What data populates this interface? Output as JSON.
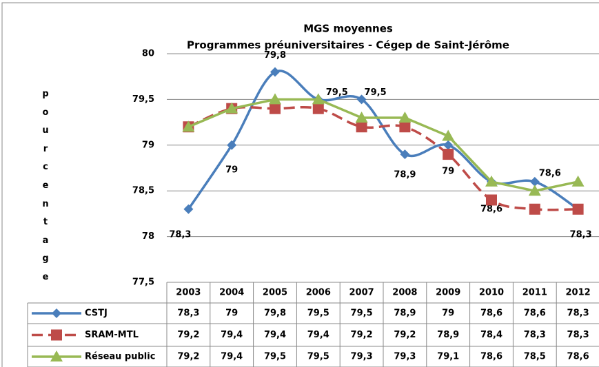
{
  "chart_data": {
    "type": "line",
    "title": "MGS moyennes",
    "subtitle": "Programmes préuniversitaires - Cégep de Saint-Jérôme",
    "y_label": "pourcentage",
    "categories": [
      "2003",
      "2004",
      "2005",
      "2006",
      "2007",
      "2008",
      "2009",
      "2010",
      "2011",
      "2012"
    ],
    "series": [
      {
        "name": "CSTJ",
        "color": "#4a7ebb",
        "marker": "diamond",
        "smooth": true,
        "dashed": false,
        "show_labels": true,
        "values": [
          78.3,
          79,
          79.8,
          79.5,
          79.5,
          78.9,
          79,
          78.6,
          78.6,
          78.3
        ],
        "value_labels": [
          "78,3",
          "79",
          "79,8",
          "79,5",
          "79,5",
          "78,9",
          "79",
          "78,6",
          "78,6",
          "78,3"
        ]
      },
      {
        "name": "SRAM-MTL",
        "color": "#be4b48",
        "marker": "square",
        "smooth": true,
        "dashed": true,
        "show_labels": false,
        "values": [
          79.2,
          79.4,
          79.4,
          79.4,
          79.2,
          79.2,
          78.9,
          78.4,
          78.3,
          78.3
        ],
        "value_labels": [
          "79,2",
          "79,4",
          "79,4",
          "79,4",
          "79,2",
          "79,2",
          "78,9",
          "78,4",
          "78,3",
          "78,3"
        ]
      },
      {
        "name": "Réseau public",
        "color": "#98b954",
        "marker": "triangle",
        "smooth": false,
        "dashed": false,
        "show_labels": false,
        "values": [
          79.2,
          79.4,
          79.5,
          79.5,
          79.3,
          79.3,
          79.1,
          78.6,
          78.5,
          78.6
        ],
        "value_labels": [
          "79,2",
          "79,4",
          "79,5",
          "79,5",
          "79,3",
          "79,3",
          "79,1",
          "78,6",
          "78,5",
          "78,6"
        ]
      }
    ],
    "ylim": [
      77.5,
      80
    ],
    "yticks": [
      {
        "value": 77.5,
        "label": "77,5"
      },
      78,
      {
        "value": 78.5,
        "label": "78,5"
      },
      79,
      {
        "value": 79.5,
        "label": "79,5"
      },
      80
    ],
    "grid": true,
    "data_table": true
  }
}
